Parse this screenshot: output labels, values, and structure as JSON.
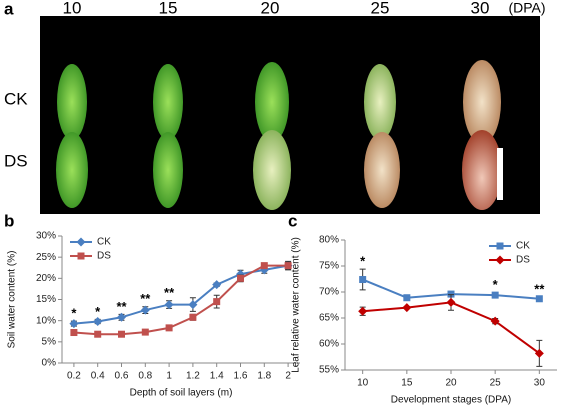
{
  "panel_a": {
    "label": "a",
    "columns": [
      "10",
      "15",
      "20",
      "25",
      "30"
    ],
    "unit": "(DPA)",
    "rows": [
      "CK",
      "DS"
    ]
  },
  "chart_data": [
    {
      "type": "line",
      "panel": "b",
      "y_label": "Soil water content (%)",
      "x_label": "Depth of soil layers (m)",
      "x": [
        0.2,
        0.4,
        0.6,
        0.8,
        1,
        1.2,
        1.4,
        1.6,
        1.8,
        2
      ],
      "xlim": [
        0.1,
        2.1
      ],
      "xticks": [
        0.2,
        0.4,
        0.6,
        0.8,
        1,
        1.2,
        1.4,
        1.6,
        1.8,
        2
      ],
      "ylim": [
        0,
        30
      ],
      "yticks": [
        {
          "value": 0,
          "label": "0%"
        },
        {
          "value": 5,
          "label": "5%"
        },
        {
          "value": 10,
          "label": "10%"
        },
        {
          "value": 15,
          "label": "15%"
        },
        {
          "value": 20,
          "label": "20%"
        },
        {
          "value": 25,
          "label": "25%"
        },
        {
          "value": 30,
          "label": "30%"
        }
      ],
      "legend": "top-left",
      "series": [
        {
          "name": "CK",
          "color": "#4a7fc1",
          "marker": "diamond",
          "values": [
            9.3,
            9.8,
            10.8,
            12.5,
            13.8,
            13.8,
            18.5,
            21,
            22,
            23
          ],
          "errors": [
            0.6,
            0.5,
            0.7,
            0.8,
            0.9,
            1.6,
            0.4,
            0.9,
            0.8,
            0.8
          ]
        },
        {
          "name": "DS",
          "color": "#c0504d",
          "marker": "square",
          "values": [
            7.2,
            6.8,
            6.8,
            7.3,
            8.3,
            10.8,
            14.5,
            20,
            23,
            23
          ],
          "errors": [
            0.3,
            0.2,
            0.5,
            0.5,
            0.3,
            0.7,
            1.5,
            0.8,
            0.5,
            1
          ]
        }
      ],
      "significance": [
        "*",
        "*",
        "**",
        "**",
        "**",
        null,
        null,
        null,
        null,
        null
      ]
    },
    {
      "type": "line",
      "panel": "c",
      "y_label": "Leaf relative water content (%)",
      "x_label": "Development stages (DPA)",
      "x": [
        10,
        15,
        20,
        25,
        30
      ],
      "xlim": [
        8,
        32
      ],
      "xticks": [
        10,
        15,
        20,
        25,
        30
      ],
      "ylim": [
        55,
        80
      ],
      "yticks": [
        {
          "value": 55,
          "label": "55%"
        },
        {
          "value": 60,
          "label": "60%"
        },
        {
          "value": 65,
          "label": "65%"
        },
        {
          "value": 70,
          "label": "70%"
        },
        {
          "value": 75,
          "label": "75%"
        },
        {
          "value": 80,
          "label": "80%"
        }
      ],
      "legend": "top-right",
      "series": [
        {
          "name": "CK",
          "color": "#4a7fc1",
          "marker": "square",
          "values": [
            72.4,
            68.9,
            69.6,
            69.4,
            68.7
          ],
          "errors": [
            2,
            0.5,
            0.3,
            0.5,
            0.3
          ]
        },
        {
          "name": "DS",
          "color": "#c00000",
          "marker": "diamond",
          "values": [
            66.3,
            67,
            68,
            64.4,
            58.2
          ],
          "errors": [
            0.8,
            0.2,
            1.5,
            0.5,
            2.5
          ]
        }
      ],
      "significance": [
        "*",
        null,
        null,
        "*",
        "**"
      ]
    }
  ]
}
